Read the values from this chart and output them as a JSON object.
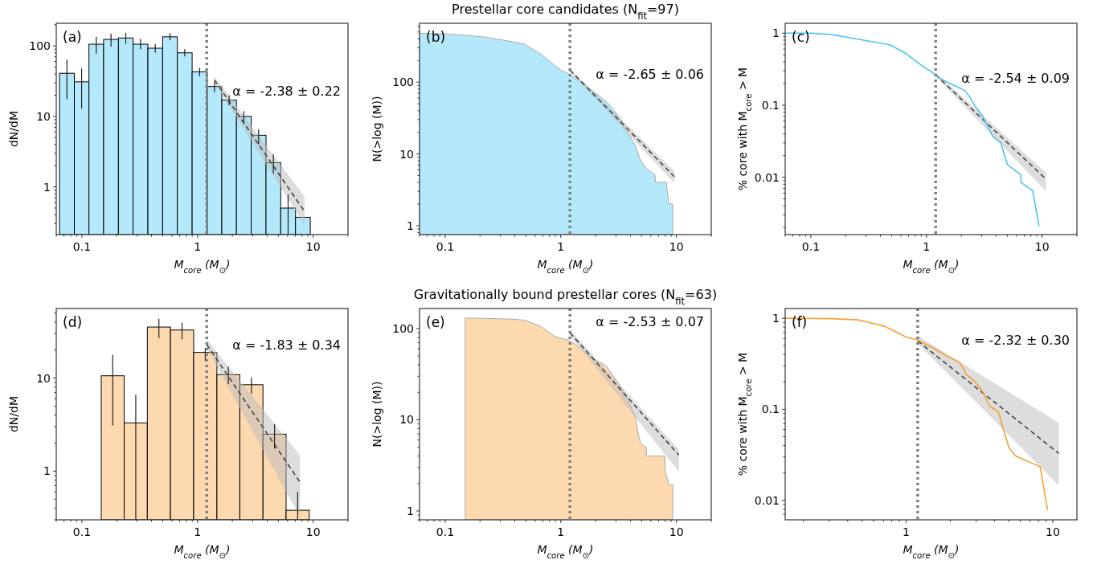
{
  "chart_data": [
    {
      "type": "histogram",
      "xlabel": "M$_{core}$ (M$_{⊙}$)",
      "ylabel": "dN/dM",
      "log": "xy",
      "xlim": [
        0.06,
        20
      ],
      "ylim": [
        0.21,
        210
      ],
      "xticks": [
        0.1,
        1,
        10
      ],
      "yticks": [
        1,
        10,
        100
      ],
      "ref_lines": [
        {
          "axis": "x",
          "value": 1.2,
          "color": "#808080",
          "line_style": "dotted"
        }
      ],
      "annotations": [
        "(a)",
        "α = -2.38 ± 0.22"
      ],
      "series": [
        {
          "color": "#b3e9fb",
          "bins": [
            0.064,
            0.086,
            0.115,
            0.154,
            0.207,
            0.277,
            0.372,
            0.499,
            0.669,
            0.898,
            1.21,
            1.62,
            2.17,
            2.91,
            3.91,
            5.24,
            7.03,
            9.44
          ],
          "values": [
            41,
            31,
            106,
            124,
            130,
            106,
            93,
            135,
            80,
            43,
            26.6,
            17,
            10,
            5.4,
            2.2,
            0.5,
            0.37
          ],
          "errors": [
            [
              17.6,
              64
            ],
            [
              12.9,
              48
            ],
            [
              78,
              134
            ],
            [
              98,
              150
            ],
            [
              108,
              154
            ],
            [
              90,
              126
            ],
            [
              80,
              107
            ],
            [
              120,
              152
            ],
            [
              71,
              90
            ],
            [
              37,
              49
            ],
            [
              22,
              31
            ],
            [
              14.4,
              20
            ],
            [
              7.8,
              11.9
            ],
            [
              4.0,
              6.6
            ],
            [
              1.54,
              2.9
            ],
            [
              0.21,
              0.78
            ],
            null
          ]
        },
        {
          "type": "line",
          "color": "#444444",
          "line_style": "dashed",
          "x": [
            1.4,
            8.4
          ],
          "values": [
            33,
            0.45
          ],
          "lower": [
            30,
            0.29
          ],
          "upper": [
            37,
            0.73
          ]
        }
      ]
    },
    {
      "type": "area",
      "title": "Prestellar core candidates (N$_{fit}$=97)",
      "xlabel": "M$_{core}$ (M$_{⊙}$)",
      "ylabel": "N(>log (M))",
      "log": "xy",
      "xlim": [
        0.06,
        20
      ],
      "ylim": [
        0.75,
        660
      ],
      "xticks": [
        0.1,
        1,
        10
      ],
      "yticks": [
        1,
        10,
        100
      ],
      "ref_lines": [
        {
          "axis": "x",
          "value": 1.2,
          "color": "#808080",
          "line_style": "dotted"
        }
      ],
      "annotations": [
        "(b)",
        "α = -2.65 ± 0.06"
      ],
      "series": [
        {
          "color": "#b3e9fb",
          "x": [
            0.06,
            0.1,
            0.149,
            0.228,
            0.313,
            0.48,
            0.66,
            0.86,
            1,
            1.12,
            1.47,
            1.9,
            2.5,
            3.24,
            3.8,
            4.2,
            4.45,
            4.8,
            5.1,
            5.5,
            6.5,
            6.6,
            8.2,
            8.3,
            8.6,
            9.3
          ],
          "values": [
            480,
            471,
            450,
            421,
            386,
            340,
            251,
            178,
            147,
            136,
            102,
            75,
            53,
            32,
            19,
            15,
            12.8,
            8.7,
            7.4,
            6.2,
            5.2,
            4.0,
            4.0,
            3.1,
            2.0,
            2.0
          ]
        },
        {
          "type": "line",
          "color": "#444444",
          "line_style": "dashed",
          "x": [
            1.2,
            9.6
          ],
          "values": [
            147,
            4.8
          ],
          "lower": [
            138,
            3.9
          ],
          "upper": [
            155,
            5.7
          ]
        }
      ]
    },
    {
      "type": "line",
      "xlabel": "M$_{core}$ (M$_{⊙}$)",
      "ylabel": "% core with M$_{core}$ > M",
      "log": "xy",
      "xlim": [
        0.06,
        20
      ],
      "ylim": [
        0.0016,
        1.37
      ],
      "xticks": [
        0.1,
        1,
        10
      ],
      "yticks": [
        0.01,
        0.1,
        1
      ],
      "ref_lines": [
        {
          "axis": "x",
          "value": 1.2,
          "color": "#808080",
          "line_style": "dotted"
        }
      ],
      "annotations": [
        "(c)",
        "α = -2.54 ± 0.09"
      ],
      "series": [
        {
          "type": "line",
          "color": "#444444",
          "line_style": "dashed",
          "x": [
            1.2,
            10.8
          ],
          "values": [
            0.265,
            0.0094
          ],
          "lower": [
            0.25,
            0.0064
          ],
          "upper": [
            0.28,
            0.0116
          ]
        },
        {
          "color": "#4cc4f0",
          "line_style": "solid",
          "x": [
            0.06,
            0.1,
            0.149,
            0.205,
            0.298,
            0.48,
            0.66,
            0.87,
            1,
            1.13,
            1.26,
            1.64,
            2.14,
            2.38,
            2.65,
            3.02,
            3.36,
            3.74,
            4.39,
            5.0,
            6.5,
            6.6,
            8.3,
            9.4
          ],
          "values": [
            1.0,
            1.0,
            0.96,
            0.88,
            0.79,
            0.69,
            0.526,
            0.373,
            0.32,
            0.284,
            0.243,
            0.196,
            0.16,
            0.128,
            0.095,
            0.073,
            0.052,
            0.037,
            0.03,
            0.0151,
            0.0109,
            0.0084,
            0.0065,
            0.0021
          ]
        }
      ]
    },
    {
      "type": "histogram",
      "xlabel": "M$_{core}$ (M$_{⊙}$)",
      "ylabel": "dN/dM",
      "log": "xy",
      "xlim": [
        0.06,
        20
      ],
      "ylim": [
        0.3,
        56
      ],
      "xticks": [
        0.1,
        1,
        10
      ],
      "yticks": [
        1,
        10
      ],
      "ref_lines": [
        {
          "axis": "x",
          "value": 1.2,
          "color": "#808080",
          "line_style": "dotted"
        }
      ],
      "annotations": [
        "(d)",
        "α = -1.83 ± 0.34"
      ],
      "series": [
        {
          "color": "#fdd9b0",
          "bins": [
            0.147,
            0.232,
            0.368,
            0.583,
            0.925,
            1.47,
            2.32,
            3.68,
            5.83,
            9.25
          ],
          "values": [
            10.6,
            3.3,
            35.4,
            32.9,
            18.9,
            10.9,
            8.5,
            2.5,
            0.38
          ],
          "errors": [
            [
              3.1,
              17.8
            ],
            [
              0.3,
              6.6
            ],
            [
              26.8,
              43.5
            ],
            [
              26.2,
              39.4
            ],
            [
              15.2,
              21.2
            ],
            [
              8.6,
              13.3
            ],
            [
              6.8,
              10.2
            ],
            [
              1.75,
              3.2
            ],
            [
              0.3,
              0.6
            ]
          ]
        },
        {
          "type": "line",
          "color": "#444444",
          "line_style": "dashed",
          "x": [
            1.2,
            7.7
          ],
          "values": [
            23,
            0.76
          ],
          "lower": [
            21,
            0.32
          ],
          "upper": [
            26,
            1.48
          ]
        }
      ]
    },
    {
      "type": "area",
      "title": "Gravitationally bound prestellar cores (N$_{fit}$=63)",
      "xlabel": "M$_{core}$ (M$_{⊙}$)",
      "ylabel": "N(>log (M))",
      "log": "xy",
      "xlim": [
        0.06,
        20
      ],
      "ylim": [
        0.8,
        166
      ],
      "xticks": [
        0.1,
        1,
        10
      ],
      "yticks": [
        1,
        10,
        100
      ],
      "ref_lines": [
        {
          "axis": "x",
          "value": 1.2,
          "color": "#808080",
          "line_style": "dotted"
        }
      ],
      "annotations": [
        "(e)",
        "α = -2.53 ± 0.07"
      ],
      "series": [
        {
          "color": "#fdd9b0",
          "x": [
            0.149,
            0.228,
            0.387,
            0.48,
            0.66,
            0.9,
            1.19,
            1.46,
            1.9,
            2.48,
            2.9,
            3.23,
            3.98,
            4.43,
            4.67,
            4.93,
            5.49,
            5.5,
            7.94,
            8.0,
            8.6,
            9.3
          ],
          "values": [
            131,
            129,
            127,
            124,
            107,
            81.5,
            74,
            62,
            47,
            39,
            29,
            24,
            14.4,
            10.6,
            7.1,
            5.4,
            5.0,
            4.0,
            4.0,
            2.7,
            1.95,
            1.95
          ]
        },
        {
          "type": "line",
          "color": "#444444",
          "line_style": "dashed",
          "x": [
            1.2,
            10.5
          ],
          "values": [
            90,
            4.1
          ],
          "lower": [
            84,
            2.7
          ],
          "upper": [
            97,
            4.7
          ]
        }
      ]
    },
    {
      "type": "line",
      "xlabel": "M$_{core}$ (M$_{⊙}$)",
      "ylabel": "% core with M$_{core}$ > M",
      "log": "xy",
      "xlim": [
        0.15,
        14.6
      ],
      "ylim": [
        0.0061,
        1.28
      ],
      "xticks": [
        1,
        10
      ],
      "yticks": [
        0.01,
        0.1,
        1
      ],
      "ref_lines": [
        {
          "axis": "x",
          "value": 1.2,
          "color": "#808080",
          "line_style": "dotted"
        }
      ],
      "annotations": [
        "(f)",
        "α = -2.32 ± 0.30"
      ],
      "series": [
        {
          "type": "line",
          "color": "#444444",
          "line_style": "dashed",
          "x": [
            1.2,
            11
          ],
          "values": [
            0.562,
            0.0327
          ],
          "lower": [
            0.53,
            0.0145
          ],
          "upper": [
            0.64,
            0.071
          ]
        },
        {
          "color": "#f5a033",
          "line_style": "solid",
          "x": [
            0.151,
            0.308,
            0.47,
            0.556,
            0.714,
            0.845,
            1,
            1.18,
            1.52,
            1.88,
            2.32,
            2.58,
            2.98,
            3.38,
            3.68,
            4.27,
            4.63,
            5.04,
            5.6,
            8.2,
            9.2
          ],
          "values": [
            1.0,
            0.99,
            0.96,
            0.9,
            0.816,
            0.713,
            0.622,
            0.582,
            0.475,
            0.387,
            0.327,
            0.241,
            0.197,
            0.15,
            0.11,
            0.093,
            0.058,
            0.0375,
            0.0306,
            0.0234,
            0.0078
          ]
        }
      ]
    }
  ]
}
